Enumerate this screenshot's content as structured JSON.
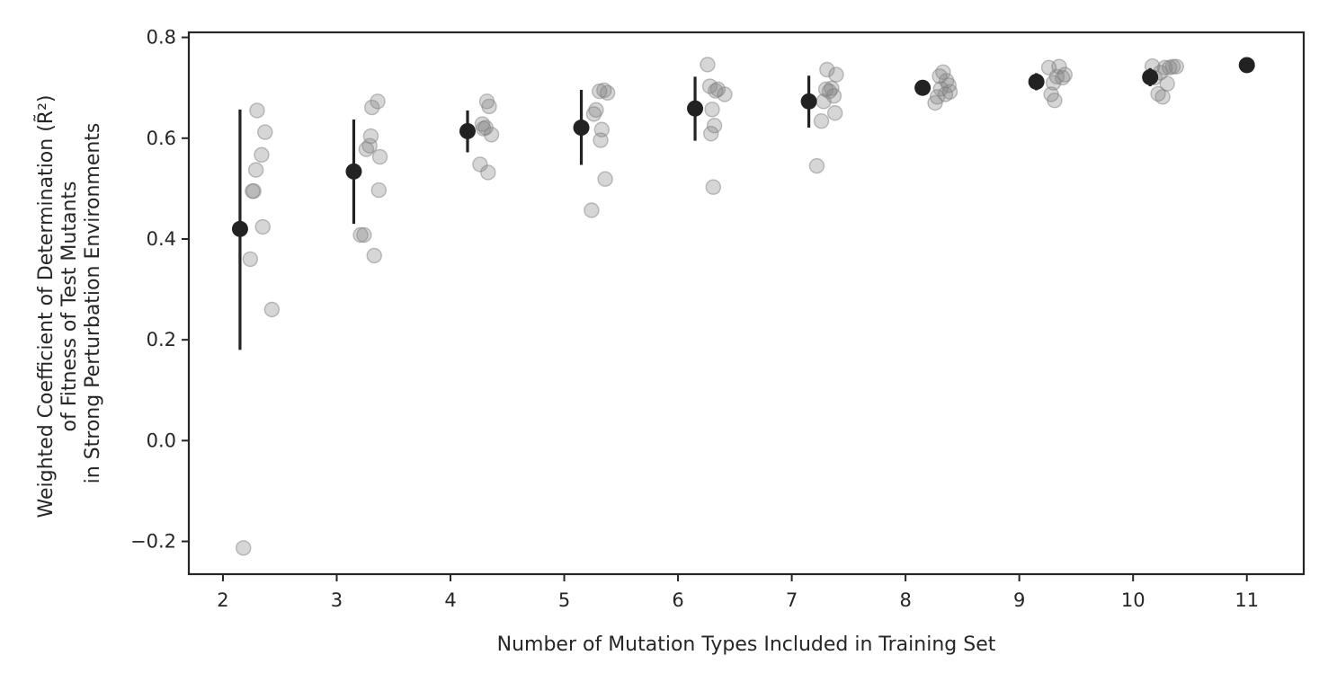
{
  "chart_data": {
    "type": "scatter",
    "title": "",
    "xlabel": "Number of Mutation Types Included in Training Set",
    "ylabel_lines": [
      "Weighted Coefficient of Determination (R̃²)",
      "of Fitness of Test Mutants",
      "in Strong Perturbation Environments"
    ],
    "xlim": [
      1.7,
      11.5
    ],
    "ylim": [
      -0.265,
      0.81
    ],
    "x_ticks": [
      2,
      3,
      4,
      5,
      6,
      7,
      8,
      9,
      10,
      11
    ],
    "x_tick_labels": [
      "2",
      "3",
      "4",
      "5",
      "6",
      "7",
      "8",
      "9",
      "10",
      "11"
    ],
    "y_ticks": [
      -0.2,
      0.0,
      0.2,
      0.4,
      0.6,
      0.8
    ],
    "y_tick_labels": [
      "−0.2",
      "0.0",
      "0.2",
      "0.4",
      "0.6",
      "0.8"
    ],
    "grid": false,
    "colors": {
      "points": "#808080",
      "mean": "#222222",
      "axes": "#262626"
    },
    "series": [
      {
        "kind": "individual",
        "points": [
          [
            2.18,
            -0.213
          ],
          [
            2.24,
            0.36
          ],
          [
            2.26,
            0.495
          ],
          [
            2.27,
            0.495
          ],
          [
            2.29,
            0.537
          ],
          [
            2.3,
            0.655
          ],
          [
            2.34,
            0.567
          ],
          [
            2.35,
            0.424
          ],
          [
            2.37,
            0.612
          ],
          [
            2.43,
            0.26
          ],
          [
            3.21,
            0.408
          ],
          [
            3.24,
            0.408
          ],
          [
            3.26,
            0.578
          ],
          [
            3.29,
            0.585
          ],
          [
            3.3,
            0.604
          ],
          [
            3.31,
            0.661
          ],
          [
            3.33,
            0.367
          ],
          [
            3.36,
            0.673
          ],
          [
            3.37,
            0.497
          ],
          [
            3.38,
            0.563
          ],
          [
            4.26,
            0.548
          ],
          [
            4.28,
            0.628
          ],
          [
            4.29,
            0.619
          ],
          [
            4.31,
            0.621
          ],
          [
            4.32,
            0.673
          ],
          [
            4.33,
            0.532
          ],
          [
            4.34,
            0.663
          ],
          [
            4.36,
            0.607
          ],
          [
            5.24,
            0.457
          ],
          [
            5.26,
            0.648
          ],
          [
            5.28,
            0.656
          ],
          [
            5.31,
            0.693
          ],
          [
            5.32,
            0.596
          ],
          [
            5.33,
            0.617
          ],
          [
            5.35,
            0.695
          ],
          [
            5.36,
            0.519
          ],
          [
            5.38,
            0.69
          ],
          [
            6.26,
            0.746
          ],
          [
            6.28,
            0.703
          ],
          [
            6.29,
            0.609
          ],
          [
            6.3,
            0.657
          ],
          [
            6.31,
            0.503
          ],
          [
            6.32,
            0.625
          ],
          [
            6.33,
            0.694
          ],
          [
            6.35,
            0.697
          ],
          [
            6.41,
            0.687
          ],
          [
            7.22,
            0.545
          ],
          [
            7.26,
            0.634
          ],
          [
            7.28,
            0.673
          ],
          [
            7.3,
            0.697
          ],
          [
            7.31,
            0.736
          ],
          [
            7.33,
            0.693
          ],
          [
            7.35,
            0.699
          ],
          [
            7.37,
            0.684
          ],
          [
            7.38,
            0.65
          ],
          [
            7.39,
            0.726
          ],
          [
            8.26,
            0.67
          ],
          [
            8.28,
            0.682
          ],
          [
            8.3,
            0.723
          ],
          [
            8.31,
            0.698
          ],
          [
            8.33,
            0.731
          ],
          [
            8.35,
            0.687
          ],
          [
            8.36,
            0.714
          ],
          [
            8.38,
            0.705
          ],
          [
            8.39,
            0.692
          ],
          [
            9.26,
            0.74
          ],
          [
            9.28,
            0.687
          ],
          [
            9.3,
            0.71
          ],
          [
            9.31,
            0.675
          ],
          [
            9.33,
            0.722
          ],
          [
            9.35,
            0.742
          ],
          [
            9.38,
            0.72
          ],
          [
            9.4,
            0.726
          ],
          [
            10.17,
            0.743
          ],
          [
            10.19,
            0.72
          ],
          [
            10.22,
            0.688
          ],
          [
            10.24,
            0.73
          ],
          [
            10.26,
            0.682
          ],
          [
            10.28,
            0.74
          ],
          [
            10.3,
            0.708
          ],
          [
            10.32,
            0.74
          ],
          [
            10.35,
            0.742
          ],
          [
            10.38,
            0.742
          ]
        ]
      },
      {
        "kind": "mean",
        "points": [
          {
            "x": 2.15,
            "y": 0.42,
            "lo": 0.18,
            "hi": 0.657
          },
          {
            "x": 3.15,
            "y": 0.534,
            "lo": 0.43,
            "hi": 0.637
          },
          {
            "x": 4.15,
            "y": 0.614,
            "lo": 0.572,
            "hi": 0.655
          },
          {
            "x": 5.15,
            "y": 0.621,
            "lo": 0.547,
            "hi": 0.696
          },
          {
            "x": 6.15,
            "y": 0.659,
            "lo": 0.595,
            "hi": 0.722
          },
          {
            "x": 7.15,
            "y": 0.673,
            "lo": 0.621,
            "hi": 0.724
          },
          {
            "x": 8.15,
            "y": 0.7,
            "lo": 0.686,
            "hi": 0.713
          },
          {
            "x": 9.15,
            "y": 0.712,
            "lo": 0.695,
            "hi": 0.729
          },
          {
            "x": 10.15,
            "y": 0.721,
            "lo": 0.703,
            "hi": 0.739
          },
          {
            "x": 11.0,
            "y": 0.745,
            "lo": 0.745,
            "hi": 0.745
          }
        ]
      }
    ]
  }
}
